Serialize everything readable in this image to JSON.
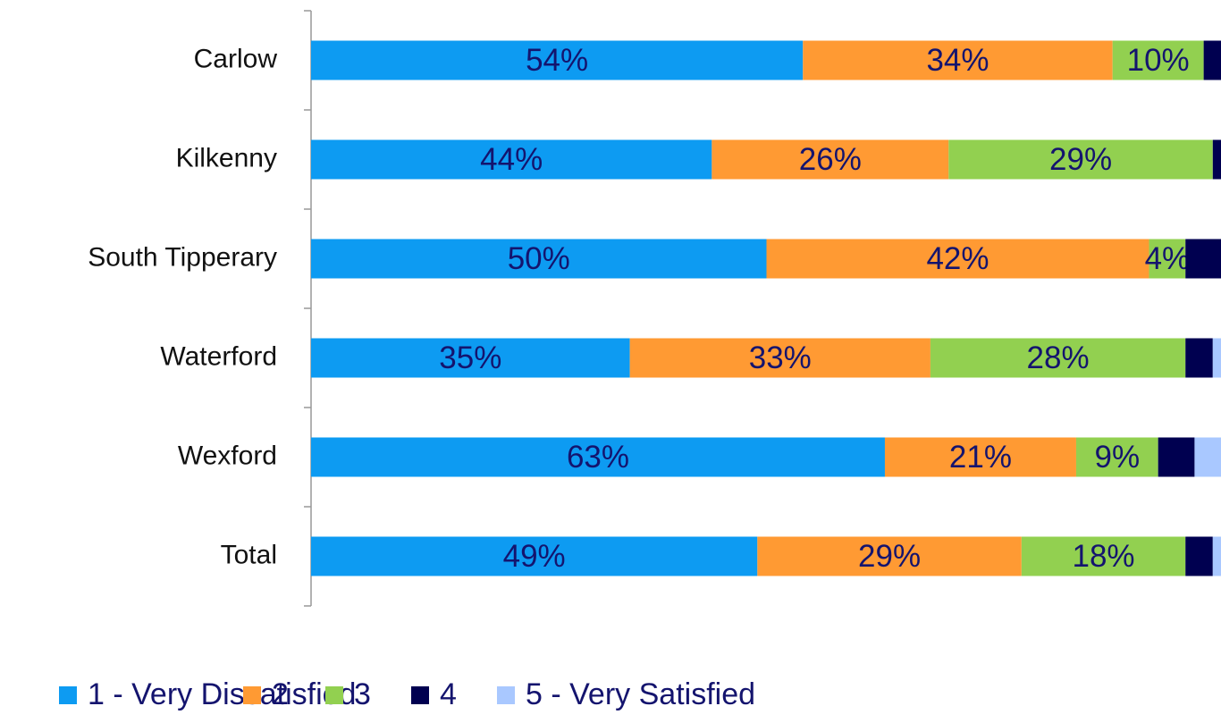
{
  "chart_data": {
    "type": "stacked_barh",
    "categories": [
      "Carlow",
      "Kilkenny",
      "South Tipperary",
      "Waterford",
      "Wexford",
      "Total"
    ],
    "xlim": [
      0,
      100
    ],
    "series": [
      {
        "name": "1 - Very Dissatisfied",
        "color": "#0d9bf2",
        "values": [
          54,
          44,
          50,
          35,
          63,
          49
        ],
        "value_labels": [
          "54%",
          "44%",
          "50%",
          "35%",
          "63%",
          "49%"
        ]
      },
      {
        "name": "2",
        "color": "#ff9a33",
        "values": [
          34,
          26,
          42,
          33,
          21,
          29
        ],
        "value_labels": [
          "34%",
          "26%",
          "42%",
          "33%",
          "21%",
          "29%"
        ]
      },
      {
        "name": "3",
        "color": "#92d050",
        "values": [
          10,
          29,
          4,
          28,
          9,
          18
        ],
        "value_labels": [
          "10%",
          "29%",
          "4%",
          "28%",
          "9%",
          "18%"
        ]
      },
      {
        "name": "4",
        "color": "#000050",
        "values": [
          2,
          1,
          4,
          3,
          4,
          3
        ],
        "value_labels": [
          null,
          null,
          null,
          null,
          null,
          null
        ]
      },
      {
        "name": "5 - Very Satisfied",
        "color": "#a9c8ff",
        "values": [
          0,
          0,
          0,
          1,
          3,
          1
        ],
        "value_labels": [
          null,
          null,
          null,
          null,
          null,
          null
        ]
      }
    ]
  }
}
